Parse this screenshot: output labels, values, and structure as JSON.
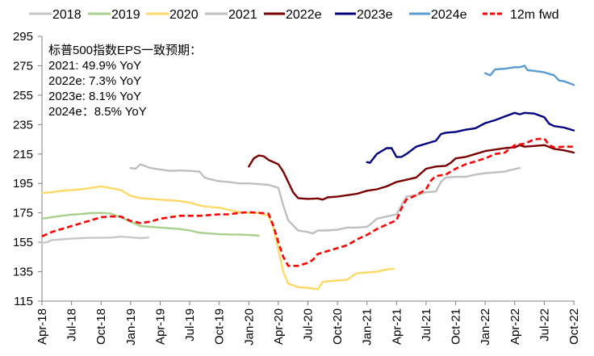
{
  "chart_data": {
    "type": "line",
    "title": "",
    "xlabel": "",
    "ylabel": "",
    "x_unit": "months since Apr-18",
    "ylim": [
      115,
      295
    ],
    "yticks": [
      115,
      135,
      155,
      175,
      195,
      215,
      235,
      255,
      275,
      295
    ],
    "xlim": [
      0,
      54
    ],
    "xticks": [
      {
        "m": 0,
        "label": "Apr-18"
      },
      {
        "m": 3,
        "label": "Jul-18"
      },
      {
        "m": 6,
        "label": "Oct-18"
      },
      {
        "m": 9,
        "label": "Jan-19"
      },
      {
        "m": 12,
        "label": "Apr-19"
      },
      {
        "m": 15,
        "label": "Jul-19"
      },
      {
        "m": 18,
        "label": "Oct-19"
      },
      {
        "m": 21,
        "label": "Jan-20"
      },
      {
        "m": 24,
        "label": "Apr-20"
      },
      {
        "m": 27,
        "label": "Jul-20"
      },
      {
        "m": 30,
        "label": "Oct-20"
      },
      {
        "m": 33,
        "label": "Jan-21"
      },
      {
        "m": 36,
        "label": "Apr-21"
      },
      {
        "m": 39,
        "label": "Jul-21"
      },
      {
        "m": 42,
        "label": "Oct-21"
      },
      {
        "m": 45,
        "label": "Jan-22"
      },
      {
        "m": 48,
        "label": "Apr-22"
      },
      {
        "m": 51,
        "label": "Jul-22"
      },
      {
        "m": 54,
        "label": "Oct-22"
      }
    ],
    "grid": false,
    "legend_position": "top",
    "annotation": {
      "lines": [
        "标普500指数EPS一致预期：",
        "2021: 49.9% YoY",
        "2022e: 7.3% YoY",
        "2023e: 8.1% YoY",
        "2024e：8.5% YoY"
      ]
    },
    "series": [
      {
        "name": "2018",
        "color": "#c8c8c8",
        "dash": false,
        "points": [
          [
            0,
            154.5
          ],
          [
            0.5,
            155
          ],
          [
            1,
            156.5
          ],
          [
            2,
            157
          ],
          [
            3,
            157.5
          ],
          [
            4,
            157.8
          ],
          [
            5,
            158
          ],
          [
            6,
            158
          ],
          [
            7,
            158.2
          ],
          [
            8,
            158.8
          ],
          [
            9,
            158.4
          ],
          [
            10,
            157.8
          ],
          [
            10.8,
            158.2
          ]
        ]
      },
      {
        "name": "2019",
        "color": "#a9d18e",
        "dash": false,
        "points": [
          [
            0,
            171
          ],
          [
            1,
            172
          ],
          [
            2,
            173
          ],
          [
            3,
            173.8
          ],
          [
            4,
            174.2
          ],
          [
            5,
            174.8
          ],
          [
            6,
            175
          ],
          [
            7,
            174.5
          ],
          [
            8,
            172
          ],
          [
            9,
            169
          ],
          [
            10,
            166
          ],
          [
            11,
            165.5
          ],
          [
            12,
            165
          ],
          [
            13,
            164.5
          ],
          [
            14,
            164
          ],
          [
            15,
            163
          ],
          [
            16,
            161.5
          ],
          [
            17,
            161
          ],
          [
            18,
            160.5
          ],
          [
            19,
            160.3
          ],
          [
            20,
            160.2
          ],
          [
            21,
            160
          ],
          [
            22,
            159.5
          ]
        ]
      },
      {
        "name": "2020",
        "color": "#ffd966",
        "dash": false,
        "points": [
          [
            0,
            188.5
          ],
          [
            1,
            189
          ],
          [
            2,
            190
          ],
          [
            3,
            190.5
          ],
          [
            4,
            191
          ],
          [
            5,
            192
          ],
          [
            6,
            193
          ],
          [
            7,
            191.8
          ],
          [
            8,
            190.5
          ],
          [
            9,
            186.5
          ],
          [
            10,
            185
          ],
          [
            11,
            184.5
          ],
          [
            12,
            184
          ],
          [
            13,
            183.5
          ],
          [
            14,
            183
          ],
          [
            15,
            182
          ],
          [
            16,
            180
          ],
          [
            17,
            179
          ],
          [
            18,
            178.5
          ],
          [
            19,
            177
          ],
          [
            20,
            175.5
          ],
          [
            21,
            175
          ],
          [
            22,
            175
          ],
          [
            23,
            173
          ],
          [
            23.5,
            165
          ],
          [
            24,
            150
          ],
          [
            24.5,
            135
          ],
          [
            25,
            127
          ],
          [
            26,
            124.5
          ],
          [
            27,
            124
          ],
          [
            28,
            123
          ],
          [
            28.5,
            128
          ],
          [
            29,
            128.5
          ],
          [
            30,
            129
          ],
          [
            31,
            129.5
          ],
          [
            31.5,
            132
          ],
          [
            32,
            134
          ],
          [
            33,
            134.5
          ],
          [
            34,
            135
          ],
          [
            35,
            136.5
          ],
          [
            35.7,
            137
          ]
        ]
      },
      {
        "name": "2021",
        "color": "#bfbfbf",
        "dash": false,
        "points": [
          [
            9,
            205.5
          ],
          [
            9.5,
            205
          ],
          [
            10,
            208
          ],
          [
            11,
            205.5
          ],
          [
            12,
            204.5
          ],
          [
            13,
            203.5
          ],
          [
            14,
            203.8
          ],
          [
            15,
            203.5
          ],
          [
            16,
            203
          ],
          [
            16.5,
            199
          ],
          [
            17,
            198
          ],
          [
            18,
            196.5
          ],
          [
            19,
            196
          ],
          [
            20,
            195
          ],
          [
            21,
            195
          ],
          [
            22,
            194.5
          ],
          [
            23,
            194
          ],
          [
            24,
            192
          ],
          [
            24.5,
            180
          ],
          [
            25,
            170
          ],
          [
            26,
            163
          ],
          [
            27,
            162
          ],
          [
            27.5,
            161
          ],
          [
            28,
            163
          ],
          [
            29,
            163
          ],
          [
            30,
            163.5
          ],
          [
            31,
            165
          ],
          [
            32,
            165
          ],
          [
            33,
            165.5
          ],
          [
            33.5,
            168
          ],
          [
            34,
            171
          ],
          [
            35,
            172.5
          ],
          [
            36,
            174
          ],
          [
            36.5,
            180
          ],
          [
            37,
            186
          ],
          [
            38,
            187
          ],
          [
            39,
            189
          ],
          [
            40,
            189.5
          ],
          [
            40.5,
            196
          ],
          [
            41,
            199
          ],
          [
            42,
            199.5
          ],
          [
            43,
            199.5
          ],
          [
            44,
            201
          ],
          [
            45,
            202
          ],
          [
            46,
            202.5
          ],
          [
            47,
            203
          ],
          [
            47.5,
            204
          ],
          [
            48.5,
            205.5
          ]
        ]
      },
      {
        "name": "2022e",
        "color": "#7b0000",
        "dash": false,
        "points": [
          [
            21,
            206.5
          ],
          [
            21.5,
            212
          ],
          [
            22,
            214
          ],
          [
            22.5,
            213.5
          ],
          [
            23,
            211
          ],
          [
            24,
            208
          ],
          [
            24.5,
            203
          ],
          [
            25,
            196
          ],
          [
            25.5,
            189
          ],
          [
            26,
            185
          ],
          [
            27,
            184.5
          ],
          [
            28,
            184.8
          ],
          [
            28.5,
            184
          ],
          [
            29,
            185.5
          ],
          [
            30,
            186
          ],
          [
            31,
            187
          ],
          [
            32,
            188
          ],
          [
            33,
            190
          ],
          [
            34,
            191
          ],
          [
            35,
            193
          ],
          [
            36,
            196
          ],
          [
            37,
            197.5
          ],
          [
            38,
            199
          ],
          [
            38.5,
            202
          ],
          [
            39,
            205
          ],
          [
            40,
            206.5
          ],
          [
            41,
            207
          ],
          [
            41.5,
            209
          ],
          [
            42,
            212
          ],
          [
            43,
            213
          ],
          [
            44,
            215
          ],
          [
            45,
            217
          ],
          [
            46,
            218
          ],
          [
            47,
            219
          ],
          [
            48,
            219.5
          ],
          [
            48.5,
            221
          ],
          [
            49,
            220
          ],
          [
            50,
            220.5
          ],
          [
            51,
            221
          ],
          [
            52,
            218.5
          ],
          [
            53,
            217.5
          ],
          [
            54,
            216
          ]
        ]
      },
      {
        "name": "2023e",
        "color": "#000080",
        "dash": false,
        "points": [
          [
            33,
            209.5
          ],
          [
            33.3,
            209
          ],
          [
            34,
            215
          ],
          [
            34.5,
            217
          ],
          [
            35,
            219
          ],
          [
            35.5,
            219
          ],
          [
            36,
            213
          ],
          [
            36.5,
            213
          ],
          [
            37,
            215
          ],
          [
            38,
            220
          ],
          [
            39,
            222
          ],
          [
            40,
            224
          ],
          [
            40.5,
            228.5
          ],
          [
            41,
            229.5
          ],
          [
            42,
            230
          ],
          [
            43,
            231.5
          ],
          [
            44,
            232.5
          ],
          [
            45,
            236
          ],
          [
            46,
            238
          ],
          [
            47,
            240.5
          ],
          [
            48,
            243
          ],
          [
            48.5,
            242
          ],
          [
            49,
            243
          ],
          [
            50,
            242.5
          ],
          [
            51,
            240
          ],
          [
            51.5,
            235.5
          ],
          [
            52,
            234
          ],
          [
            53,
            233
          ],
          [
            54,
            231
          ]
        ]
      },
      {
        "name": "2024e",
        "color": "#5b9bd5",
        "dash": false,
        "points": [
          [
            45,
            270
          ],
          [
            45.5,
            268.5
          ],
          [
            46,
            272.5
          ],
          [
            47,
            273
          ],
          [
            48,
            274
          ],
          [
            48.5,
            274
          ],
          [
            49,
            275
          ],
          [
            49.3,
            272
          ],
          [
            50,
            271.5
          ],
          [
            51,
            270.5
          ],
          [
            52,
            268.5
          ],
          [
            52.5,
            265
          ],
          [
            53,
            264.5
          ],
          [
            54,
            262
          ]
        ]
      },
      {
        "name": "12m fwd",
        "color": "#ff0000",
        "dash": true,
        "points": [
          [
            0,
            159
          ],
          [
            1,
            162
          ],
          [
            2,
            164
          ],
          [
            3,
            166
          ],
          [
            4,
            168
          ],
          [
            5,
            170
          ],
          [
            6,
            172
          ],
          [
            7,
            172.5
          ],
          [
            8,
            172.5
          ],
          [
            9,
            169.5
          ],
          [
            10,
            168
          ],
          [
            11,
            169
          ],
          [
            12,
            171
          ],
          [
            13,
            172
          ],
          [
            14,
            173
          ],
          [
            15,
            173
          ],
          [
            16,
            173
          ],
          [
            17,
            173.5
          ],
          [
            18,
            174
          ],
          [
            19,
            174
          ],
          [
            20,
            175
          ],
          [
            21,
            175.5
          ],
          [
            22,
            175
          ],
          [
            23,
            174.5
          ],
          [
            23.5,
            166
          ],
          [
            24,
            155
          ],
          [
            24.5,
            145
          ],
          [
            25,
            139
          ],
          [
            26,
            139
          ],
          [
            27,
            141
          ],
          [
            27.5,
            143
          ],
          [
            28,
            147
          ],
          [
            29,
            149
          ],
          [
            30,
            151
          ],
          [
            31,
            153
          ],
          [
            32,
            157
          ],
          [
            33,
            160
          ],
          [
            34,
            164
          ],
          [
            35,
            167
          ],
          [
            36,
            170
          ],
          [
            36.5,
            178
          ],
          [
            37,
            184
          ],
          [
            38,
            187
          ],
          [
            39,
            191
          ],
          [
            39.5,
            197
          ],
          [
            40,
            200
          ],
          [
            41,
            201
          ],
          [
            42,
            205
          ],
          [
            43,
            208
          ],
          [
            44,
            210
          ],
          [
            45,
            212
          ],
          [
            46,
            215
          ],
          [
            47,
            216
          ],
          [
            48,
            221
          ],
          [
            49,
            222
          ],
          [
            50,
            225
          ],
          [
            51,
            225.5
          ],
          [
            51.5,
            221
          ],
          [
            52,
            219.5
          ],
          [
            53,
            220
          ],
          [
            54,
            220
          ]
        ]
      }
    ]
  }
}
